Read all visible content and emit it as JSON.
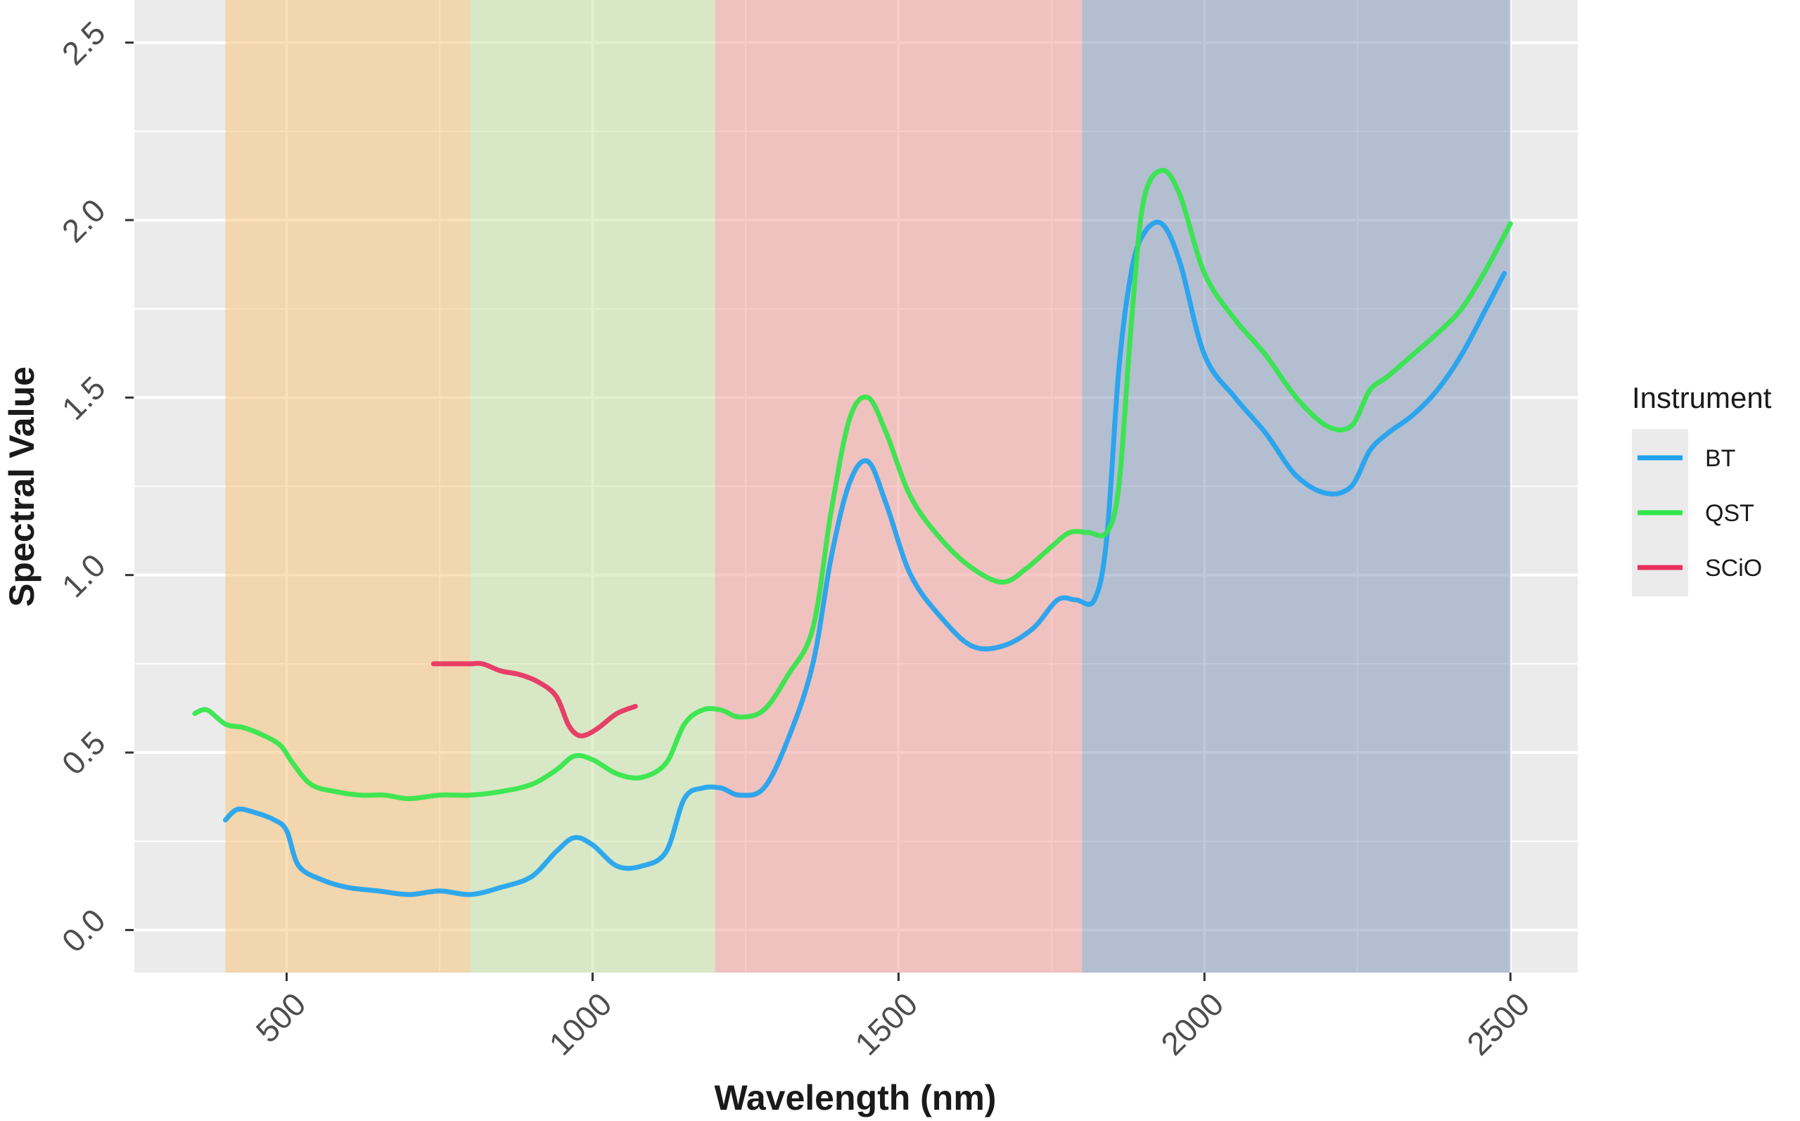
{
  "chart_data": {
    "type": "line",
    "title": "",
    "xlabel": "Wavelength (nm)",
    "ylabel": "Spectral Value",
    "xlim": [
      250,
      2610
    ],
    "ylim": [
      -0.12,
      2.62
    ],
    "x_ticks": [
      500,
      1000,
      1500,
      2000,
      2500
    ],
    "x_tick_labels": [
      "500",
      "1000",
      "1500",
      "2000",
      "2500"
    ],
    "y_ticks": [
      0.0,
      0.5,
      1.0,
      1.5,
      2.0,
      2.5
    ],
    "y_tick_labels": [
      "0.0",
      "0.5",
      "1.0",
      "1.5",
      "2.0",
      "2.5"
    ],
    "grid": true,
    "legend": {
      "title": "Instrument",
      "position": "right"
    },
    "bands": [
      {
        "x0": 400,
        "x1": 800,
        "color": "#f6c47c",
        "opacity": 0.55
      },
      {
        "x0": 800,
        "x1": 1200,
        "color": "#c9e6a8",
        "opacity": 0.55
      },
      {
        "x0": 1200,
        "x1": 1800,
        "color": "#f3a09a",
        "opacity": 0.55
      },
      {
        "x0": 1800,
        "x1": 2500,
        "color": "#7b92b6",
        "opacity": 0.5
      }
    ],
    "series": [
      {
        "name": "BT",
        "color": "#1fa3f0",
        "x": [
          400,
          420,
          450,
          480,
          500,
          520,
          560,
          600,
          650,
          700,
          750,
          800,
          850,
          900,
          940,
          970,
          1000,
          1040,
          1080,
          1120,
          1150,
          1180,
          1210,
          1240,
          1280,
          1320,
          1360,
          1390,
          1420,
          1450,
          1480,
          1520,
          1570,
          1620,
          1670,
          1720,
          1760,
          1790,
          1820,
          1840,
          1860,
          1880,
          1900,
          1930,
          1960,
          2000,
          2050,
          2100,
          2150,
          2200,
          2240,
          2270,
          2300,
          2340,
          2380,
          2420,
          2460,
          2490
        ],
        "y": [
          0.31,
          0.34,
          0.33,
          0.31,
          0.28,
          0.18,
          0.14,
          0.12,
          0.11,
          0.1,
          0.11,
          0.1,
          0.12,
          0.15,
          0.22,
          0.26,
          0.24,
          0.18,
          0.18,
          0.22,
          0.37,
          0.4,
          0.4,
          0.38,
          0.4,
          0.54,
          0.75,
          1.05,
          1.26,
          1.32,
          1.2,
          1.0,
          0.88,
          0.8,
          0.8,
          0.85,
          0.93,
          0.93,
          0.93,
          1.1,
          1.58,
          1.85,
          1.96,
          1.99,
          1.88,
          1.62,
          1.5,
          1.4,
          1.28,
          1.23,
          1.25,
          1.35,
          1.4,
          1.45,
          1.52,
          1.62,
          1.75,
          1.85
        ]
      },
      {
        "name": "QST",
        "color": "#32e649",
        "x": [
          350,
          370,
          400,
          430,
          460,
          490,
          510,
          540,
          580,
          620,
          660,
          700,
          750,
          800,
          850,
          900,
          940,
          970,
          1000,
          1040,
          1080,
          1120,
          1150,
          1180,
          1210,
          1240,
          1280,
          1320,
          1360,
          1390,
          1420,
          1450,
          1480,
          1520,
          1570,
          1620,
          1670,
          1710,
          1750,
          1780,
          1810,
          1840,
          1860,
          1880,
          1900,
          1930,
          1960,
          2000,
          2050,
          2100,
          2150,
          2200,
          2240,
          2270,
          2300,
          2340,
          2380,
          2420,
          2460,
          2500
        ],
        "y": [
          0.61,
          0.62,
          0.58,
          0.57,
          0.55,
          0.52,
          0.47,
          0.41,
          0.39,
          0.38,
          0.38,
          0.37,
          0.38,
          0.38,
          0.39,
          0.41,
          0.45,
          0.49,
          0.48,
          0.44,
          0.43,
          0.47,
          0.58,
          0.62,
          0.62,
          0.6,
          0.62,
          0.72,
          0.85,
          1.18,
          1.44,
          1.5,
          1.4,
          1.22,
          1.1,
          1.02,
          0.98,
          1.02,
          1.08,
          1.12,
          1.12,
          1.12,
          1.25,
          1.7,
          2.05,
          2.14,
          2.07,
          1.85,
          1.72,
          1.62,
          1.5,
          1.42,
          1.42,
          1.52,
          1.56,
          1.62,
          1.68,
          1.75,
          1.86,
          1.99
        ]
      },
      {
        "name": "SCiO",
        "color": "#e8305e",
        "x": [
          740,
          770,
          800,
          820,
          850,
          880,
          910,
          940,
          960,
          975,
          990,
          1010,
          1040,
          1070
        ],
        "y": [
          0.75,
          0.75,
          0.75,
          0.75,
          0.73,
          0.72,
          0.7,
          0.66,
          0.58,
          0.55,
          0.55,
          0.57,
          0.61,
          0.63
        ]
      }
    ]
  }
}
